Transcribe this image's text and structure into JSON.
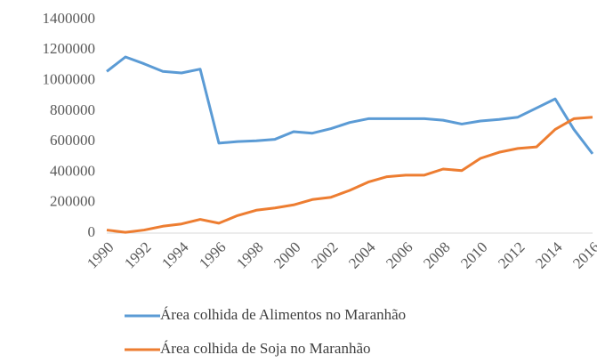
{
  "chart_data": {
    "type": "line",
    "x": [
      1990,
      1991,
      1992,
      1993,
      1994,
      1995,
      1996,
      1997,
      1998,
      1999,
      2000,
      2001,
      2002,
      2003,
      2004,
      2005,
      2006,
      2007,
      2008,
      2009,
      2010,
      2011,
      2012,
      2013,
      2014,
      2015,
      2016
    ],
    "series": [
      {
        "name": "Área colhida de Alimentos no Maranhão",
        "color": "#5b9bd5",
        "values": [
          1060000,
          1155000,
          1110000,
          1060000,
          1050000,
          1075000,
          590000,
          600000,
          605000,
          615000,
          665000,
          655000,
          685000,
          725000,
          750000,
          750000,
          750000,
          750000,
          740000,
          715000,
          735000,
          745000,
          760000,
          820000,
          880000,
          680000,
          520000
        ]
      },
      {
        "name": "Área colhida de Soja no Maranhão",
        "color": "#ed7d31",
        "values": [
          20000,
          5000,
          20000,
          45000,
          60000,
          90000,
          65000,
          115000,
          150000,
          165000,
          185000,
          220000,
          235000,
          280000,
          335000,
          370000,
          380000,
          380000,
          420000,
          410000,
          490000,
          530000,
          555000,
          565000,
          680000,
          750000,
          760000
        ]
      }
    ],
    "xlim": [
      1990,
      2016
    ],
    "xticks": [
      1990,
      1992,
      1994,
      1996,
      1998,
      2000,
      2002,
      2004,
      2006,
      2008,
      2010,
      2012,
      2014,
      2016
    ],
    "ylim": [
      0,
      1400000
    ],
    "yticks": [
      0,
      200000,
      400000,
      600000,
      800000,
      1000000,
      1200000,
      1400000
    ]
  }
}
